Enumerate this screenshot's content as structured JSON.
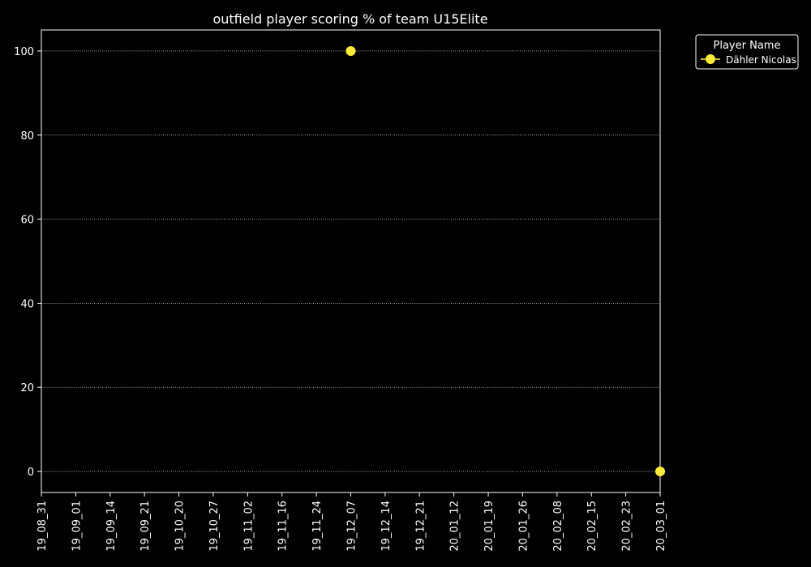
{
  "chart_data": {
    "type": "scatter",
    "title": "outfield player scoring % of team U15Elite",
    "xlabel": "",
    "ylabel": "",
    "categories": [
      "19_08_31",
      "19_09_01",
      "19_09_14",
      "19_09_21",
      "19_10_20",
      "19_10_27",
      "19_11_02",
      "19_11_16",
      "19_11_24",
      "19_12_07",
      "19_12_14",
      "19_12_21",
      "20_01_12",
      "20_01_19",
      "20_01_26",
      "20_02_08",
      "20_02_15",
      "20_02_23",
      "20_03_01"
    ],
    "ylim": [
      -5,
      105
    ],
    "yticks": [
      0,
      20,
      40,
      60,
      80,
      100
    ],
    "grid": "horizontal dotted",
    "legend": {
      "title": "Player Name",
      "position": "top-right outside"
    },
    "series": [
      {
        "name": "Dähler Nicolas",
        "color": "#ffeb3b",
        "points": [
          {
            "x": "19_12_07",
            "y": 100
          },
          {
            "x": "20_03_01",
            "y": 0
          }
        ]
      }
    ]
  },
  "colors": {
    "background": "#000000",
    "axes": "#ffffff",
    "grid": "#ffffff",
    "marker": "#ffeb3b"
  }
}
